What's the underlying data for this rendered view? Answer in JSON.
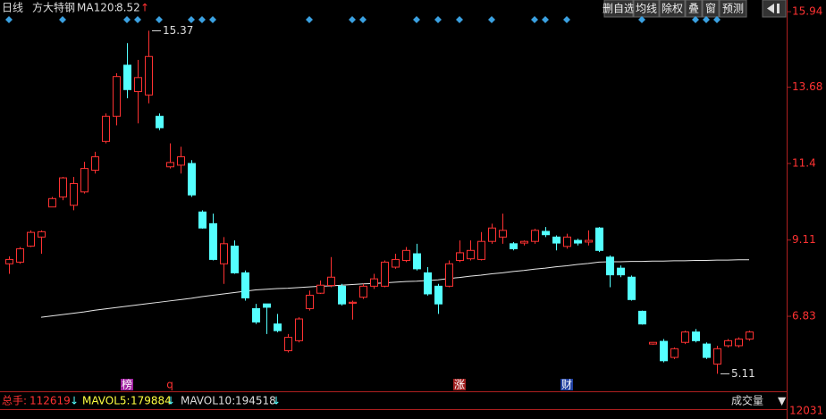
{
  "chart_data": {
    "type": "candlestick",
    "period": "日线",
    "stock_name": "方大特钢",
    "ma_label": "MA120:",
    "ma_value": 8.52,
    "up_arrow": "↑",
    "down_arrow": "↓",
    "toolbar": [
      "删自选",
      "均线",
      "除权",
      "叠",
      "窗",
      "预测"
    ],
    "ylim": [
      4.8,
      16.29
    ],
    "yticks": [
      15.94,
      13.68,
      11.4,
      9.11,
      6.83
    ],
    "up_color": "#ff3232",
    "down_color": "#54ffff",
    "ma_color": "#e8e8e8",
    "open": [
      8.4,
      8.45,
      8.93,
      9.2,
      10.1,
      10.4,
      10.15,
      10.55,
      11.2,
      12.06,
      12.81,
      14.34,
      13.55,
      13.45,
      12.81,
      11.3,
      11.35,
      11.4,
      9.95,
      9.6,
      8.4,
      8.93,
      8.13,
      7.06,
      7.2,
      6.6,
      5.8,
      6.1,
      7.06,
      7.52,
      7.75,
      7.73,
      7.22,
      7.4,
      7.73,
      7.73,
      8.3,
      8.5,
      8.7,
      8.13,
      7.73,
      7.73,
      8.5,
      8.55,
      8.53,
      9.07,
      9.2,
      9.0,
      9.02,
      9.07,
      9.37,
      9.2,
      8.92,
      9.1,
      9.05,
      9.47,
      8.6,
      8.27,
      8.0,
      6.98,
      6.0,
      6.08,
      5.6,
      6.05,
      6.36,
      6.0,
      5.4,
      5.95,
      5.95,
      6.15
    ],
    "high": [
      8.62,
      8.9,
      9.4,
      9.4,
      10.4,
      11.0,
      11.0,
      11.45,
      11.75,
      12.9,
      14.1,
      15.0,
      14.5,
      15.37,
      12.9,
      12.0,
      11.9,
      11.5,
      10.0,
      9.9,
      9.2,
      9.1,
      8.2,
      7.2,
      7.2,
      6.9,
      6.3,
      6.8,
      7.6,
      7.9,
      8.6,
      7.8,
      7.3,
      7.8,
      8.1,
      8.5,
      8.7,
      8.9,
      9.0,
      8.3,
      7.8,
      8.5,
      9.1,
      9.1,
      9.35,
      9.6,
      9.9,
      9.05,
      9.1,
      9.45,
      9.5,
      9.25,
      9.3,
      9.15,
      9.4,
      9.5,
      8.65,
      8.35,
      8.05,
      7.0,
      6.06,
      6.15,
      5.9,
      6.4,
      6.45,
      6.05,
      5.95,
      6.15,
      6.2,
      6.4
    ],
    "low": [
      8.1,
      8.4,
      8.9,
      8.7,
      10.1,
      10.3,
      10.0,
      10.5,
      11.1,
      12.0,
      12.54,
      13.35,
      12.6,
      13.2,
      12.4,
      11.25,
      11.1,
      10.4,
      9.45,
      8.5,
      7.8,
      8.1,
      7.3,
      6.6,
      6.3,
      6.35,
      5.75,
      6.05,
      7.0,
      7.5,
      7.7,
      7.15,
      6.73,
      7.35,
      7.65,
      7.7,
      8.25,
      8.45,
      8.2,
      7.45,
      6.9,
      7.7,
      8.45,
      8.5,
      8.5,
      9.0,
      9.0,
      8.8,
      8.95,
      9.0,
      9.2,
      8.8,
      8.85,
      8.95,
      8.95,
      8.75,
      7.7,
      8.0,
      7.3,
      6.58,
      5.98,
      5.45,
      5.55,
      6.0,
      6.05,
      5.55,
      5.11,
      5.9,
      5.9,
      6.1
    ],
    "close": [
      8.53,
      8.85,
      9.34,
      9.36,
      10.35,
      10.97,
      10.8,
      11.25,
      11.6,
      12.81,
      14.0,
      13.61,
      13.97,
      14.6,
      12.47,
      11.43,
      11.6,
      10.46,
      9.47,
      8.53,
      9.0,
      8.13,
      7.38,
      6.66,
      7.1,
      6.4,
      6.2,
      6.75,
      7.46,
      7.76,
      8.0,
      7.2,
      7.25,
      7.73,
      7.95,
      8.45,
      8.53,
      8.8,
      8.25,
      7.5,
      7.2,
      8.4,
      8.73,
      8.8,
      9.07,
      9.47,
      9.4,
      8.85,
      9.07,
      9.4,
      9.27,
      9.02,
      9.2,
      9.02,
      9.1,
      8.8,
      8.07,
      8.07,
      7.33,
      6.6,
      6.05,
      5.5,
      5.86,
      6.36,
      6.1,
      5.6,
      5.86,
      6.1,
      6.15,
      6.36
    ],
    "ma120": [
      null,
      null,
      null,
      6.8,
      6.84,
      6.88,
      6.92,
      6.96,
      7.01,
      7.05,
      7.09,
      7.13,
      7.17,
      7.21,
      7.25,
      7.29,
      7.33,
      7.37,
      7.42,
      7.46,
      7.5,
      7.54,
      7.58,
      7.62,
      7.64,
      7.66,
      7.67,
      7.69,
      7.71,
      7.73,
      7.74,
      7.76,
      7.78,
      7.8,
      7.81,
      7.83,
      7.85,
      7.87,
      7.88,
      7.9,
      7.92,
      7.96,
      7.99,
      8.03,
      8.06,
      8.1,
      8.13,
      8.17,
      8.2,
      8.24,
      8.27,
      8.31,
      8.34,
      8.38,
      8.41,
      8.45,
      8.46,
      8.46,
      8.47,
      8.47,
      8.48,
      8.48,
      8.49,
      8.49,
      8.5,
      8.5,
      8.51,
      8.51,
      8.52,
      8.52
    ],
    "max_index": 13,
    "min_index": 66,
    "events": [
      {
        "index": 11,
        "label": "榜"
      },
      {
        "index": 15,
        "label": "q"
      },
      {
        "index": 42,
        "label": "涨"
      },
      {
        "index": 52,
        "label": "财"
      }
    ],
    "volume": {
      "total_label": "总手:",
      "total": 112619,
      "mavol5_label": "MAVOL5:",
      "mavol5": 179884,
      "mavol10_label": "MAVOL10:",
      "mavol10": 194518,
      "indicator": "成交量",
      "dropdown": "▼",
      "axis_max": 12031
    }
  }
}
